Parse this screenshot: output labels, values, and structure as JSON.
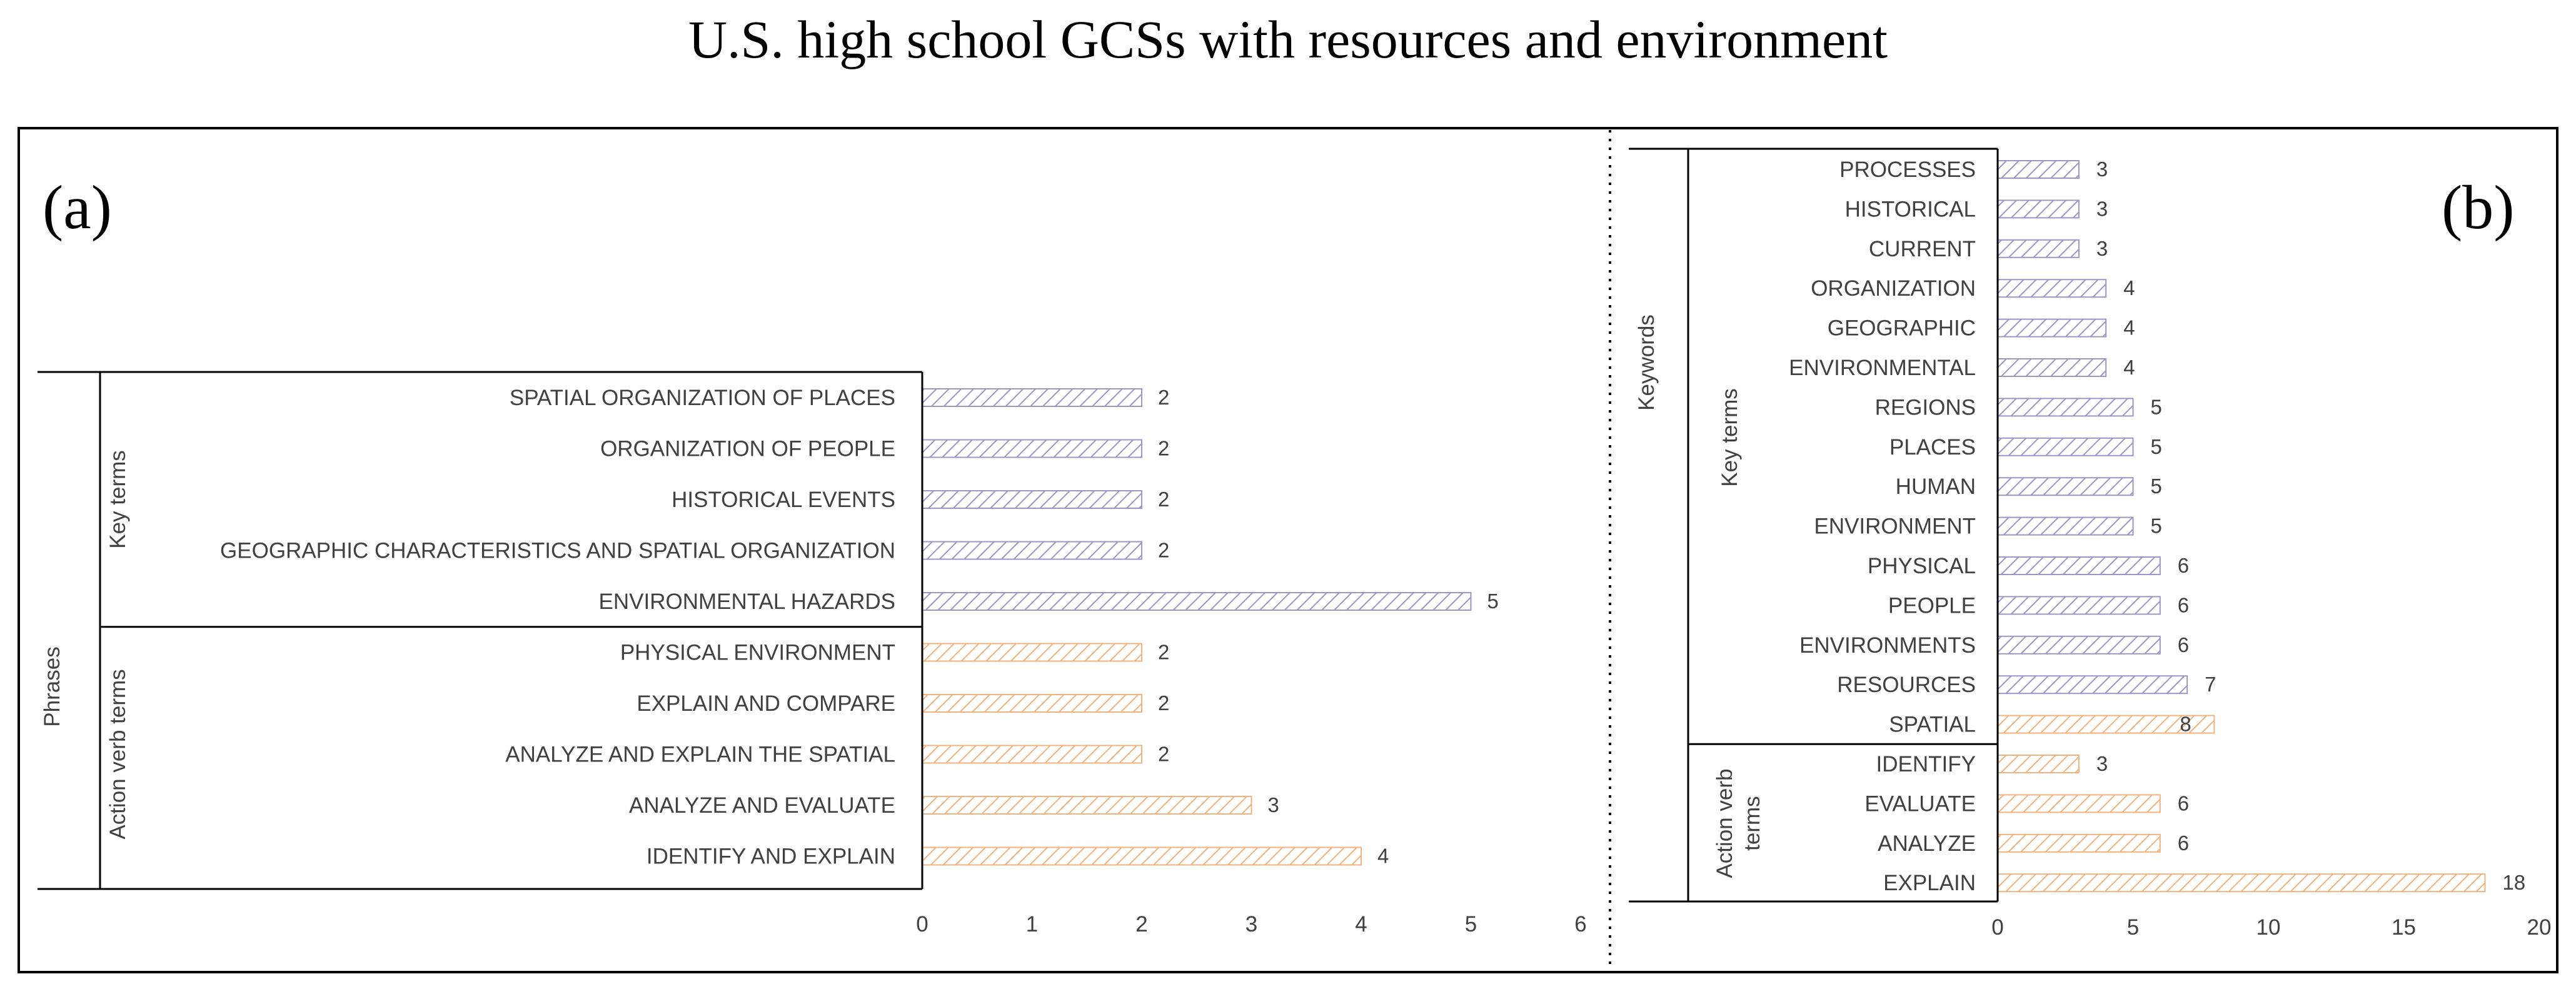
{
  "title": "U.S. high school GCSs with resources and environment",
  "colors": {
    "keyterm": "#9d94c8",
    "action": "#f2b27e",
    "frame": "#000000"
  },
  "chart_data": [
    {
      "type": "bar",
      "orientation": "horizontal",
      "panel": "(a)",
      "outer_group": "Phrases",
      "xlim": [
        0,
        6
      ],
      "xticks": [
        0,
        1,
        2,
        3,
        4,
        5,
        6
      ],
      "groups": [
        {
          "label": "Key terms",
          "style": "keyterm",
          "categories": [
            "SPATIAL ORGANIZATION OF PLACES",
            "ORGANIZATION OF PEOPLE",
            "HISTORICAL EVENTS",
            "GEOGRAPHIC CHARACTERISTICS AND SPATIAL ORGANIZATION",
            "ENVIRONMENTAL HAZARDS"
          ],
          "values": [
            2,
            2,
            2,
            2,
            5
          ]
        },
        {
          "label": "Action verb terms",
          "style": "action",
          "categories": [
            "PHYSICAL ENVIRONMENT",
            "EXPLAIN AND COMPARE",
            "ANALYZE AND EXPLAIN THE SPATIAL",
            "ANALYZE AND EVALUATE",
            "IDENTIFY AND EXPLAIN"
          ],
          "values": [
            2,
            2,
            2,
            3,
            4
          ]
        }
      ]
    },
    {
      "type": "bar",
      "orientation": "horizontal",
      "panel": "(b)",
      "outer_group": "Keywords",
      "xlim": [
        0,
        20
      ],
      "xticks": [
        0,
        5,
        10,
        15,
        20
      ],
      "groups": [
        {
          "label": "Key terms",
          "style": "keyterm",
          "categories": [
            "PROCESSES",
            "HISTORICAL",
            "CURRENT",
            "ORGANIZATION",
            "GEOGRAPHIC",
            "ENVIRONMENTAL",
            "REGIONS",
            "PLACES",
            "HUMAN",
            "ENVIRONMENT",
            "PHYSICAL",
            "PEOPLE",
            "ENVIRONMENTS",
            "RESOURCES"
          ],
          "values": [
            3,
            3,
            3,
            4,
            4,
            4,
            5,
            5,
            5,
            5,
            6,
            6,
            6,
            7
          ]
        },
        {
          "label": "",
          "style": "action",
          "categories": [
            "SPATIAL"
          ],
          "values": [
            8
          ]
        },
        {
          "label": "Action verb terms",
          "style": "action",
          "categories": [
            "IDENTIFY",
            "EVALUATE",
            "ANALYZE",
            "EXPLAIN"
          ],
          "values": [
            3,
            6,
            6,
            18
          ]
        }
      ]
    }
  ]
}
